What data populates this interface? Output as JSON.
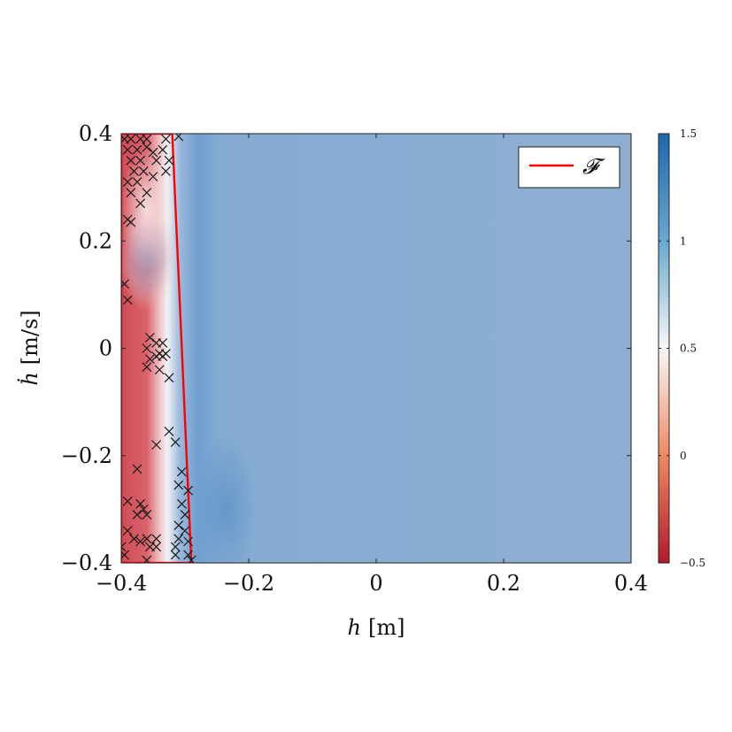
{
  "chart_data": {
    "type": "heatmap",
    "title": "",
    "xlabel_var": "h",
    "xlabel_unit": "[m]",
    "ylabel_var": "ḣ",
    "ylabel_unit": "[m/s]",
    "xlim": [
      -0.4,
      0.4
    ],
    "ylim": [
      -0.4,
      0.4
    ],
    "x_ticks": [
      -0.4,
      -0.2,
      0,
      0.2,
      0.4
    ],
    "x_tick_labels": [
      "−0.4",
      "−0.2",
      "0",
      "0.2",
      "0.4"
    ],
    "y_ticks": [
      -0.4,
      -0.2,
      0,
      0.2,
      0.4
    ],
    "y_tick_labels": [
      "−0.4",
      "−0.2",
      "0",
      "0.2",
      "0.4"
    ],
    "colorbar": {
      "range": [
        -0.5,
        1.5
      ],
      "ticks": [
        -0.5,
        0,
        0.5,
        1,
        1.5
      ],
      "tick_labels": [
        "−0.5",
        "0",
        "0.5",
        "1",
        "1.5"
      ],
      "colors": [
        "#b2182b",
        "#ef8a62",
        "#f7f7f7",
        "#67a9cf",
        "#2166ac"
      ]
    },
    "legend": {
      "label": "𝓕",
      "color": "#ff0000",
      "placement": "top-right"
    },
    "safe_set_polygon": [
      [
        -0.4,
        0.4
      ],
      [
        -0.32,
        0.4
      ],
      [
        -0.29,
        -0.4
      ],
      [
        -0.4,
        -0.4
      ]
    ],
    "samples": [
      [
        -0.395,
        0.39
      ],
      [
        -0.385,
        0.39
      ],
      [
        -0.37,
        0.39
      ],
      [
        -0.36,
        0.39
      ],
      [
        -0.33,
        0.39
      ],
      [
        -0.31,
        0.395
      ],
      [
        -0.39,
        0.37
      ],
      [
        -0.375,
        0.37
      ],
      [
        -0.36,
        0.375
      ],
      [
        -0.35,
        0.365
      ],
      [
        -0.335,
        0.37
      ],
      [
        -0.385,
        0.35
      ],
      [
        -0.37,
        0.35
      ],
      [
        -0.345,
        0.35
      ],
      [
        -0.325,
        0.35
      ],
      [
        -0.38,
        0.33
      ],
      [
        -0.365,
        0.33
      ],
      [
        -0.35,
        0.32
      ],
      [
        -0.33,
        0.33
      ],
      [
        -0.39,
        0.31
      ],
      [
        -0.375,
        0.31
      ],
      [
        -0.36,
        0.29
      ],
      [
        -0.385,
        0.29
      ],
      [
        -0.37,
        0.27
      ],
      [
        -0.39,
        0.24
      ],
      [
        -0.385,
        0.235
      ],
      [
        -0.395,
        0.12
      ],
      [
        -0.39,
        0.09
      ],
      [
        -0.355,
        0.02
      ],
      [
        -0.345,
        0.01
      ],
      [
        -0.335,
        0.01
      ],
      [
        -0.34,
        -0.01
      ],
      [
        -0.345,
        -0.015
      ],
      [
        -0.335,
        -0.015
      ],
      [
        -0.33,
        -0.01
      ],
      [
        -0.36,
        0.0
      ],
      [
        -0.355,
        -0.02
      ],
      [
        -0.34,
        -0.04
      ],
      [
        -0.325,
        -0.055
      ],
      [
        -0.36,
        -0.035
      ],
      [
        -0.325,
        -0.155
      ],
      [
        -0.315,
        -0.175
      ],
      [
        -0.345,
        -0.18
      ],
      [
        -0.305,
        -0.23
      ],
      [
        -0.375,
        -0.225
      ],
      [
        -0.31,
        -0.255
      ],
      [
        -0.295,
        -0.265
      ],
      [
        -0.39,
        -0.285
      ],
      [
        -0.37,
        -0.29
      ],
      [
        -0.305,
        -0.29
      ],
      [
        -0.365,
        -0.3
      ],
      [
        -0.36,
        -0.31
      ],
      [
        -0.375,
        -0.31
      ],
      [
        -0.3,
        -0.31
      ],
      [
        -0.31,
        -0.33
      ],
      [
        -0.39,
        -0.34
      ],
      [
        -0.3,
        -0.34
      ],
      [
        -0.38,
        -0.355
      ],
      [
        -0.37,
        -0.36
      ],
      [
        -0.36,
        -0.355
      ],
      [
        -0.355,
        -0.37
      ],
      [
        -0.345,
        -0.355
      ],
      [
        -0.31,
        -0.355
      ],
      [
        -0.295,
        -0.36
      ],
      [
        -0.4,
        -0.37
      ],
      [
        -0.395,
        -0.385
      ],
      [
        -0.36,
        -0.395
      ],
      [
        -0.315,
        -0.385
      ],
      [
        -0.295,
        -0.385
      ],
      [
        -0.29,
        -0.395
      ],
      [
        -0.315,
        -0.37
      ],
      [
        -0.345,
        -0.37
      ]
    ]
  }
}
